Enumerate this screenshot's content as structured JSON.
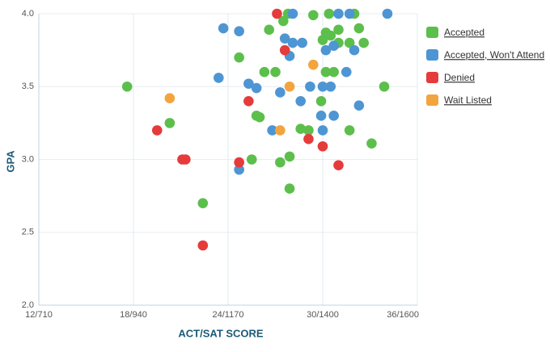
{
  "chart_data": {
    "type": "scatter",
    "x_label": "ACT/SAT SCORE",
    "y_label": "GPA",
    "xlim": [
      12,
      36
    ],
    "ylim": [
      2,
      4
    ],
    "xticks": [
      {
        "value": 12,
        "label": "12/710"
      },
      {
        "value": 18,
        "label": "18/940"
      },
      {
        "value": 24,
        "label": "24/1170"
      },
      {
        "value": 30,
        "label": "30/1400"
      },
      {
        "value": 36,
        "label": "36/1600"
      }
    ],
    "yticks": [
      {
        "value": 2,
        "label": "2.0"
      },
      2.5,
      {
        "value": 3,
        "label": "3.0"
      },
      3.5,
      {
        "value": 4,
        "label": "4.0"
      }
    ],
    "grid": true,
    "legend": "right",
    "series": [
      {
        "name": "Accepted",
        "color": "#5cbf4c",
        "x": [
          17.6,
          20.3,
          22.4,
          24.7,
          25.5,
          25.8,
          26.0,
          26.3,
          26.6,
          27.0,
          27.3,
          27.5,
          27.8,
          27.9,
          27.9,
          28.6,
          29.1,
          29.4,
          29.9,
          30.0,
          30.2,
          30.2,
          30.4,
          30.5,
          30.7,
          31.0,
          31.0,
          31.7,
          31.7,
          32.0,
          32.3,
          32.6,
          33.1,
          33.9
        ],
        "values": [
          3.5,
          3.25,
          2.7,
          3.7,
          3.0,
          3.3,
          3.29,
          3.6,
          3.89,
          3.6,
          2.98,
          3.95,
          4.0,
          3.02,
          2.8,
          3.21,
          3.2,
          3.99,
          3.4,
          3.82,
          3.87,
          3.6,
          4.0,
          3.85,
          3.6,
          3.89,
          3.8,
          3.8,
          3.2,
          4.0,
          3.9,
          3.8,
          3.11,
          3.5
        ]
      },
      {
        "name": "Accepted, Won't Attend",
        "color": "#4e95d3",
        "x": [
          23.7,
          24.7,
          24.7,
          23.4,
          25.3,
          25.8,
          26.8,
          27.3,
          27.6,
          27.9,
          28.1,
          28.1,
          28.7,
          28.6,
          29.2,
          29.9,
          30.0,
          30.0,
          30.2,
          30.5,
          30.7,
          30.7,
          31.0,
          31.5,
          31.7,
          32.0,
          32.3,
          34.1
        ],
        "values": [
          3.9,
          3.88,
          2.93,
          3.56,
          3.52,
          3.49,
          3.2,
          3.46,
          3.83,
          3.71,
          4.0,
          3.8,
          3.8,
          3.4,
          3.5,
          3.3,
          3.2,
          3.5,
          3.75,
          3.5,
          3.3,
          3.78,
          4.0,
          3.6,
          4.0,
          3.75,
          3.37,
          4.0
        ]
      },
      {
        "name": "Denied",
        "color": "#e53b3b",
        "x": [
          19.5,
          21.1,
          21.3,
          22.4,
          24.7,
          25.3,
          27.1,
          27.6,
          29.1,
          30.0,
          31.0
        ],
        "values": [
          3.2,
          3.0,
          3.0,
          2.41,
          2.98,
          3.4,
          4.0,
          3.75,
          3.14,
          3.09,
          2.96
        ]
      },
      {
        "name": "Wait Listed",
        "color": "#f2a53e",
        "x": [
          20.3,
          27.3,
          27.9,
          29.4
        ],
        "values": [
          3.42,
          3.2,
          3.5,
          3.65
        ]
      }
    ]
  }
}
